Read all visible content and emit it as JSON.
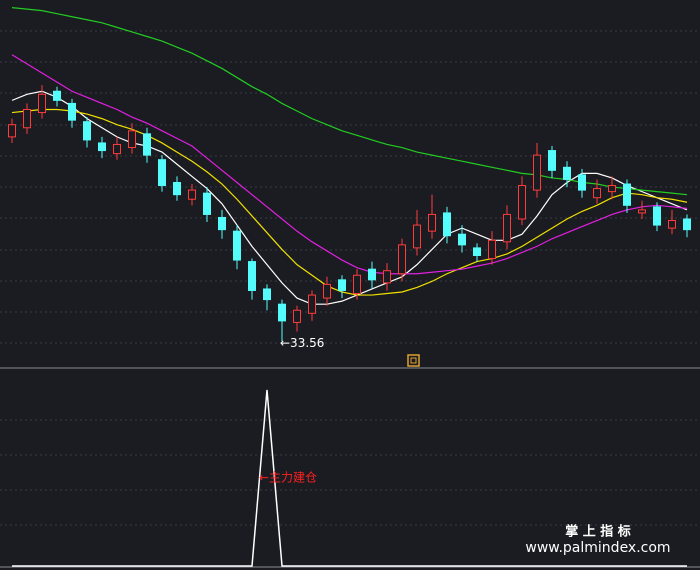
{
  "chart_data": {
    "type": "candlestick",
    "ylim": [
      32,
      56
    ],
    "up_color": "#ff3b3b",
    "down_color": "#54fcfc",
    "open": [
      47.0,
      47.6,
      48.6,
      50.0,
      49.2,
      48.0,
      46.6,
      45.9,
      46.3,
      47.2,
      45.5,
      44.0,
      42.9,
      43.3,
      41.7,
      40.8,
      38.8,
      37.0,
      36.0,
      34.8,
      35.4,
      36.4,
      37.6,
      36.7,
      38.3,
      37.4,
      38.0,
      39.7,
      40.8,
      42.0,
      40.6,
      39.7,
      39.0,
      40.1,
      41.6,
      43.5,
      46.1,
      45.0,
      44.5,
      43.0,
      43.4,
      43.9,
      42.0,
      42.4,
      41.0,
      41.6
    ],
    "high": [
      48.2,
      49.2,
      50.4,
      50.3,
      49.5,
      48.3,
      47.0,
      47.0,
      47.9,
      47.6,
      45.8,
      44.4,
      43.9,
      43.7,
      42.2,
      41.2,
      39.0,
      37.3,
      36.3,
      35.9,
      36.9,
      37.8,
      37.9,
      38.3,
      38.8,
      38.7,
      40.3,
      42.2,
      43.2,
      42.4,
      41.2,
      40.0,
      40.8,
      42.5,
      44.4,
      46.6,
      46.4,
      45.4,
      44.9,
      44.2,
      44.4,
      44.2,
      42.8,
      42.7,
      42.2,
      41.9
    ],
    "low": [
      46.6,
      47.2,
      48.2,
      49.0,
      47.6,
      46.3,
      45.6,
      45.5,
      45.9,
      45.3,
      43.4,
      42.8,
      42.5,
      41.4,
      40.3,
      38.3,
      36.3,
      35.6,
      33.56,
      34.2,
      34.9,
      35.9,
      36.4,
      36.3,
      37.0,
      36.9,
      37.5,
      39.2,
      40.3,
      40.0,
      39.4,
      38.8,
      38.6,
      39.6,
      41.2,
      43.0,
      44.3,
      43.7,
      43.0,
      42.6,
      42.9,
      42.0,
      41.6,
      40.8,
      40.6,
      40.4
    ],
    "close": [
      47.8,
      48.8,
      49.8,
      49.4,
      48.1,
      46.8,
      46.1,
      46.5,
      47.4,
      45.8,
      43.8,
      43.2,
      43.5,
      41.9,
      40.9,
      38.9,
      36.9,
      36.3,
      34.9,
      35.6,
      36.6,
      37.3,
      36.9,
      37.9,
      37.6,
      38.2,
      39.9,
      41.2,
      41.9,
      40.5,
      39.9,
      39.2,
      40.2,
      41.9,
      43.8,
      45.8,
      44.8,
      44.2,
      43.5,
      43.6,
      43.8,
      42.5,
      42.2,
      41.2,
      41.5,
      40.9
    ],
    "lines": [
      {
        "color": "#ffffff",
        "values": [
          49.4,
          49.8,
          50.0,
          49.6,
          49.0,
          48.2,
          47.6,
          47.0,
          46.6,
          46.4,
          46.0,
          45.2,
          44.4,
          43.6,
          42.6,
          41.2,
          39.8,
          38.6,
          37.4,
          36.4,
          36.0,
          36.0,
          36.2,
          36.6,
          37.0,
          37.4,
          37.8,
          38.6,
          39.6,
          40.6,
          41.0,
          40.6,
          40.2,
          40.2,
          40.6,
          41.8,
          43.2,
          44.0,
          44.6,
          44.6,
          44.3,
          43.8,
          43.4,
          43.0,
          42.6,
          42.2
        ]
      },
      {
        "color": "#f0e000",
        "values": [
          48.6,
          48.7,
          48.8,
          48.8,
          48.7,
          48.5,
          48.2,
          47.8,
          47.5,
          47.1,
          46.6,
          46.0,
          45.4,
          44.7,
          43.9,
          42.9,
          41.8,
          40.7,
          39.6,
          38.6,
          37.9,
          37.2,
          36.8,
          36.6,
          36.6,
          36.7,
          36.8,
          37.1,
          37.5,
          38.0,
          38.4,
          38.8,
          39.0,
          39.3,
          39.8,
          40.4,
          41.0,
          41.6,
          42.1,
          42.5,
          43.0,
          43.3,
          43.2,
          43.0,
          42.9,
          42.7
        ]
      },
      {
        "color": "#e020e0",
        "values": [
          52.4,
          51.8,
          51.2,
          50.6,
          50.0,
          49.6,
          49.2,
          48.8,
          48.3,
          47.9,
          47.4,
          46.9,
          46.4,
          45.6,
          44.8,
          44.0,
          43.2,
          42.4,
          41.6,
          40.8,
          40.1,
          39.5,
          38.9,
          38.4,
          38.1,
          38.0,
          38.0,
          38.0,
          38.1,
          38.2,
          38.3,
          38.5,
          38.7,
          39.0,
          39.4,
          39.8,
          40.3,
          40.7,
          41.1,
          41.5,
          41.9,
          42.2,
          42.4,
          42.5,
          42.4,
          42.3
        ]
      },
      {
        "color": "#22cc22",
        "values": [
          55.5,
          55.4,
          55.3,
          55.1,
          54.9,
          54.7,
          54.5,
          54.2,
          53.9,
          53.6,
          53.3,
          52.9,
          52.5,
          52.0,
          51.5,
          50.9,
          50.3,
          49.8,
          49.2,
          48.7,
          48.2,
          47.8,
          47.4,
          47.1,
          46.8,
          46.5,
          46.3,
          46.0,
          45.8,
          45.6,
          45.4,
          45.2,
          45.0,
          44.8,
          44.6,
          44.5,
          44.3,
          44.2,
          44.0,
          43.9,
          43.7,
          43.6,
          43.5,
          43.4,
          43.3,
          43.2
        ]
      }
    ],
    "annotations": [
      {
        "text": "←33.56"
      }
    ],
    "indicator": {
      "type": "line",
      "color": "#ffffff",
      "ylim": [
        0,
        1
      ],
      "values": [
        0,
        0,
        0,
        0,
        0,
        0,
        0,
        0,
        0,
        0,
        0,
        0,
        0,
        0,
        0,
        0,
        0,
        1,
        0,
        0,
        0,
        0,
        0,
        0,
        0,
        0,
        0,
        0,
        0,
        0,
        0,
        0,
        0,
        0,
        0,
        0,
        0,
        0,
        0,
        0,
        0,
        0,
        0,
        0,
        0,
        0
      ],
      "label": "←主力建仓",
      "label_color": "#ff2020"
    }
  },
  "watermark": {
    "title": "掌 上 指 标",
    "url": "www.palmindex.com"
  }
}
